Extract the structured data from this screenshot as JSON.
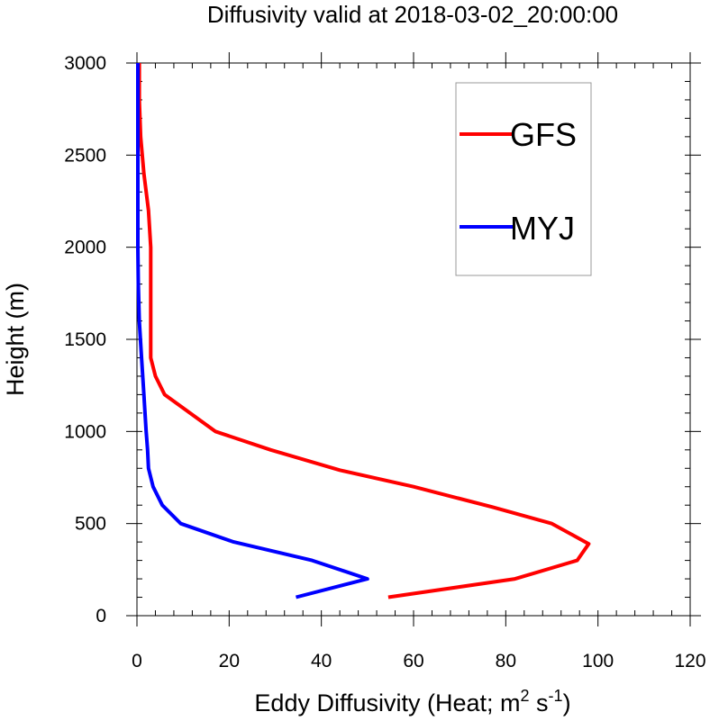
{
  "chart_data": {
    "type": "line",
    "title": "Diffusivity valid at 2018-03-02_20:00:00",
    "xlabel": {
      "prefix": "Eddy Diffusivity (Heat; m",
      "sup1": "2",
      "middle": " s",
      "sup2": "-1",
      "suffix": ")"
    },
    "ylabel": "Height (m)",
    "xlim": [
      0,
      120
    ],
    "ylim": [
      0,
      3000
    ],
    "xticks": [
      0,
      20,
      40,
      60,
      80,
      100,
      120
    ],
    "yticks": [
      0,
      500,
      1000,
      1500,
      2000,
      2500,
      3000
    ],
    "legend_position": "top-right",
    "series": [
      {
        "name": "GFS",
        "color": "#ff0000",
        "points": [
          [
            54.5,
            100
          ],
          [
            82,
            200
          ],
          [
            95.5,
            300
          ],
          [
            98,
            390
          ],
          [
            90,
            500
          ],
          [
            77,
            590
          ],
          [
            60,
            700
          ],
          [
            44,
            790
          ],
          [
            29,
            900
          ],
          [
            17,
            1000
          ],
          [
            6,
            1200
          ],
          [
            4,
            1300
          ],
          [
            3,
            1400
          ],
          [
            3,
            1600
          ],
          [
            3,
            1800
          ],
          [
            3,
            2000
          ],
          [
            2.5,
            2200
          ],
          [
            1.5,
            2400
          ],
          [
            0.8,
            2600
          ],
          [
            0.5,
            2800
          ],
          [
            0.5,
            3000
          ]
        ]
      },
      {
        "name": "MYJ",
        "color": "#0000ff",
        "points": [
          [
            34.5,
            100
          ],
          [
            50,
            200
          ],
          [
            38,
            300
          ],
          [
            21,
            400
          ],
          [
            9.5,
            500
          ],
          [
            5.5,
            600
          ],
          [
            3.5,
            700
          ],
          [
            2.5,
            800
          ],
          [
            2.3,
            900
          ],
          [
            2,
            1000
          ],
          [
            1.5,
            1200
          ],
          [
            1,
            1400
          ],
          [
            0.5,
            1600
          ],
          [
            0.3,
            1800
          ],
          [
            0.2,
            2000
          ],
          [
            0.2,
            2500
          ],
          [
            0.2,
            3000
          ]
        ]
      }
    ]
  }
}
